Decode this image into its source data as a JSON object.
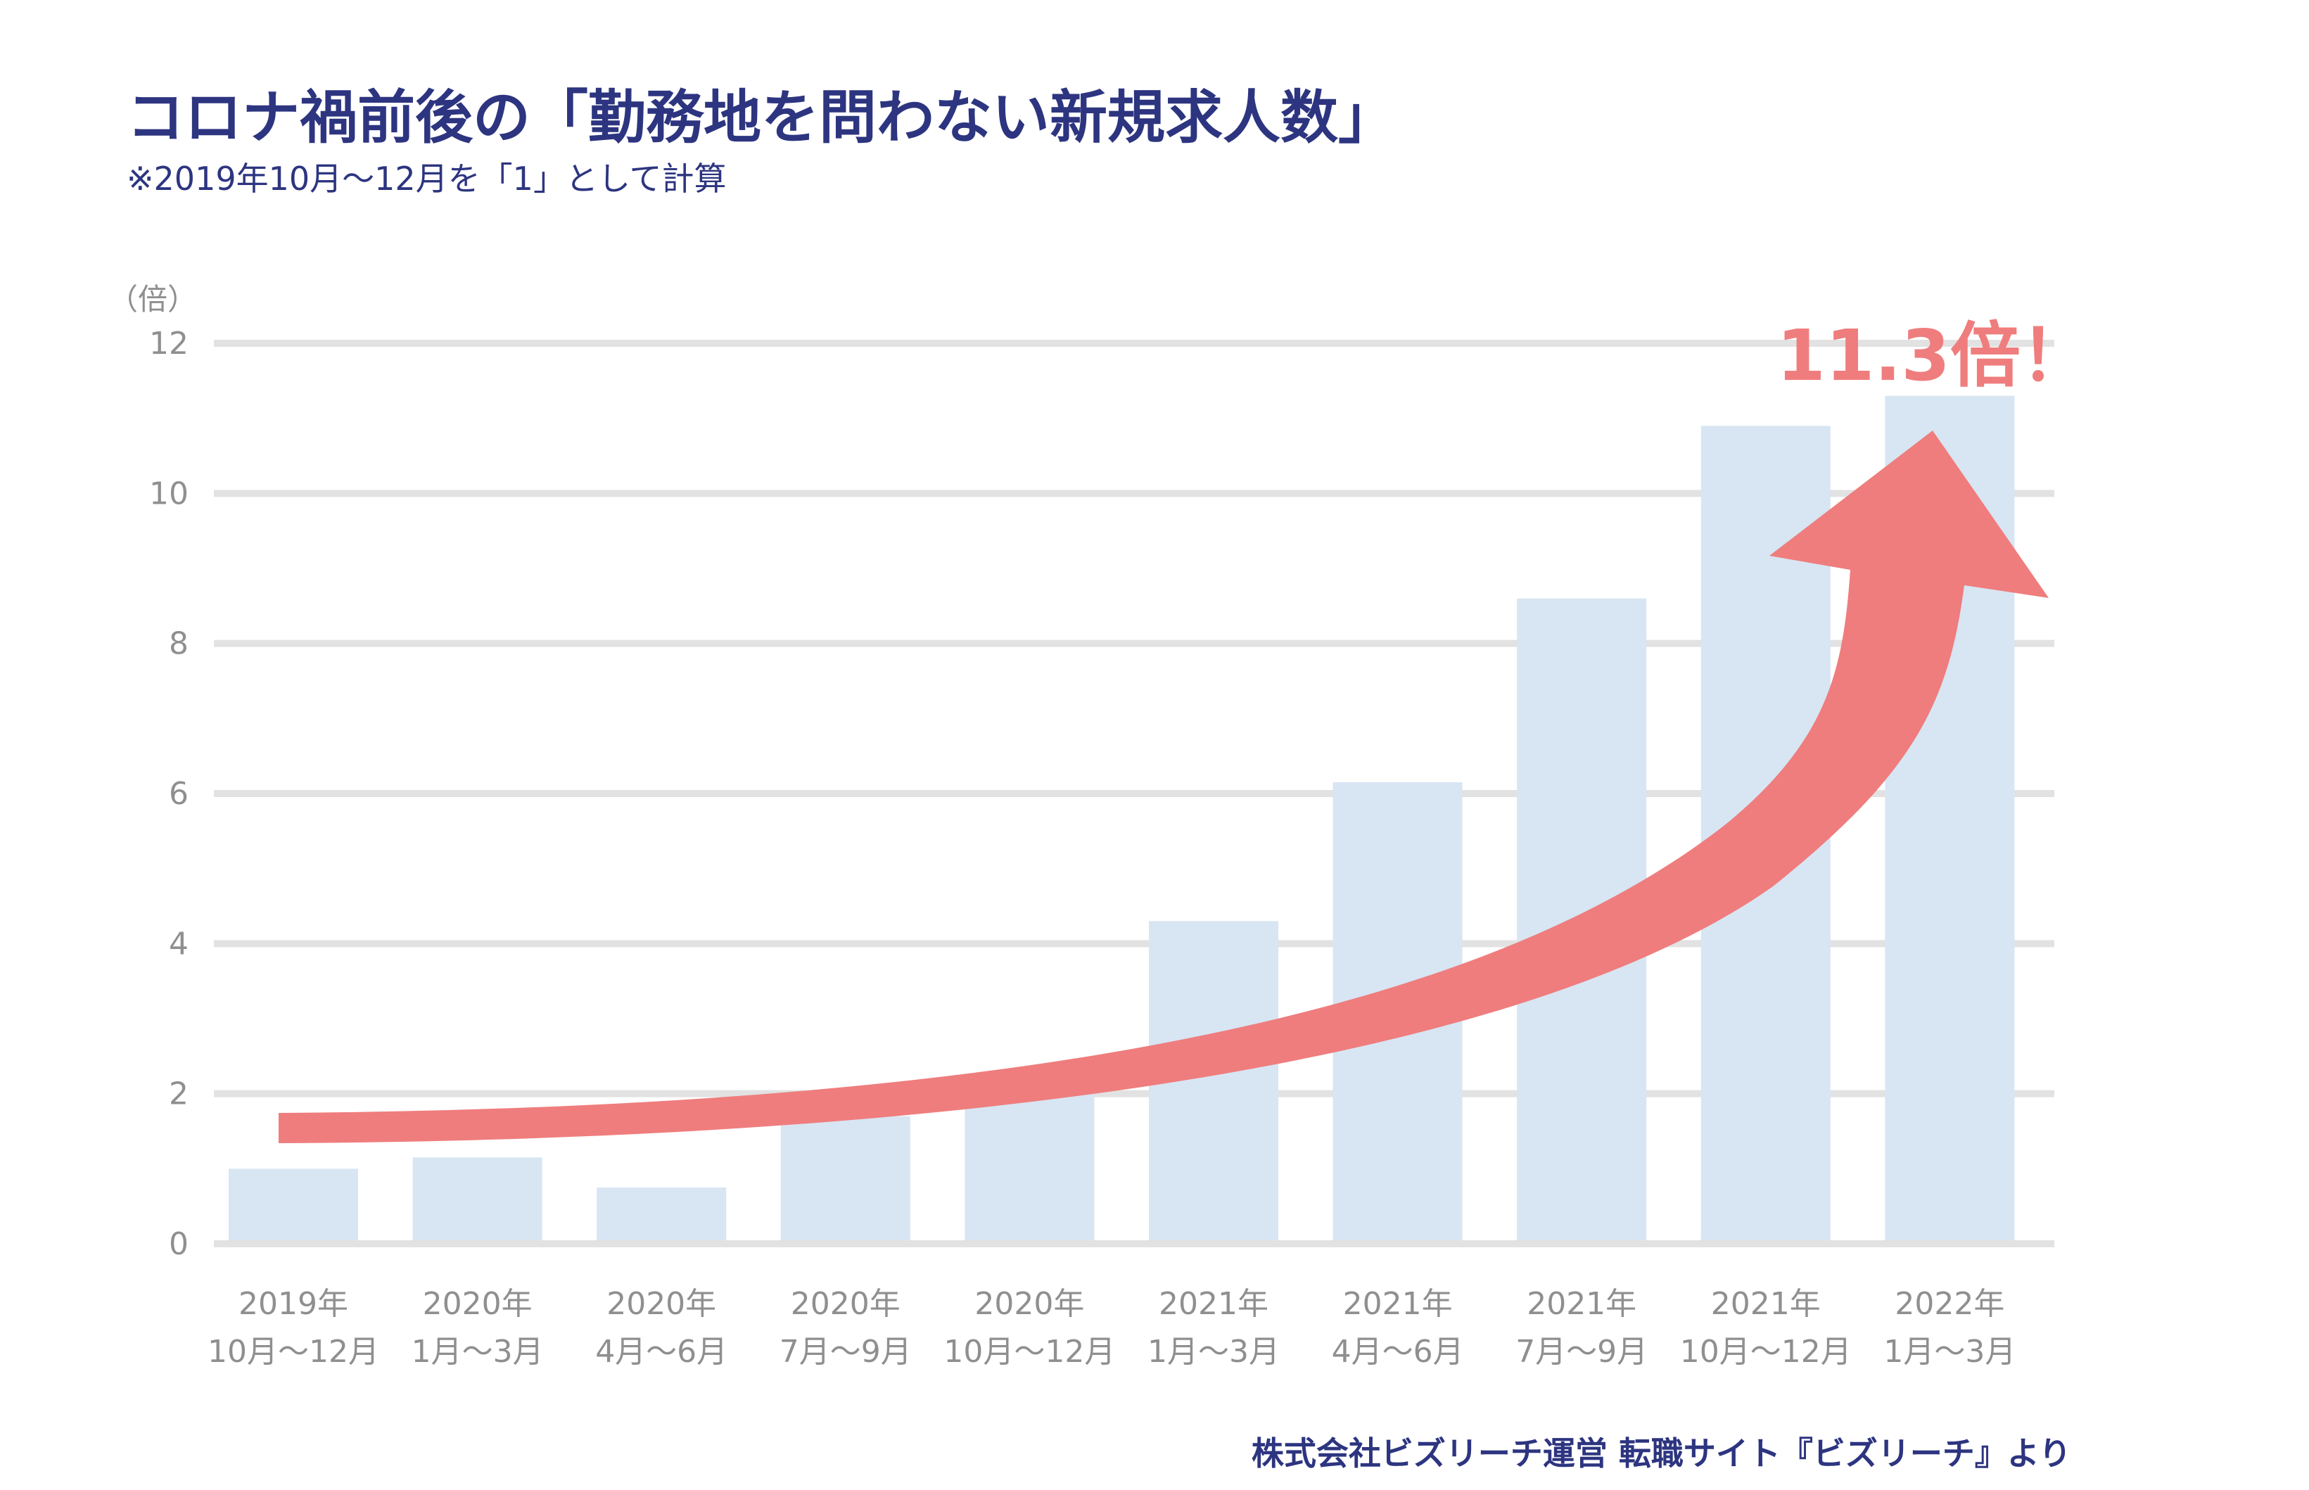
{
  "header": {
    "title": "コロナ禍前後の「勤務地を問わない新規求人数」",
    "subtitle": "※2019年10月〜12月を「1」として計算"
  },
  "footer": {
    "source": "株式会社ビズリーチ運営 転職サイト『ビズリーチ』より"
  },
  "annotation": {
    "label": "11.3倍！"
  },
  "colors": {
    "bar": "#d8e5f3",
    "grid": "#e2e2e2",
    "axis_text": "#8f8f8f",
    "arrow": "#ef7d7d",
    "title": "#2d3580"
  },
  "chart_data": {
    "type": "bar",
    "ylabel": "（倍）",
    "ylim": [
      0,
      12
    ],
    "yticks": [
      0,
      2,
      4,
      6,
      8,
      10,
      12
    ],
    "categories": [
      [
        "2019年",
        "10月〜12月"
      ],
      [
        "2020年",
        "1月〜3月"
      ],
      [
        "2020年",
        "4月〜6月"
      ],
      [
        "2020年",
        "7月〜9月"
      ],
      [
        "2020年",
        "10月〜12月"
      ],
      [
        "2021年",
        "1月〜3月"
      ],
      [
        "2021年",
        "4月〜6月"
      ],
      [
        "2021年",
        "7月〜9月"
      ],
      [
        "2021年",
        "10月〜12月"
      ],
      [
        "2022年",
        "1月〜3月"
      ]
    ],
    "values": [
      1.0,
      1.15,
      0.75,
      1.7,
      2.2,
      4.3,
      6.15,
      8.6,
      10.9,
      11.3
    ],
    "grid": true
  }
}
